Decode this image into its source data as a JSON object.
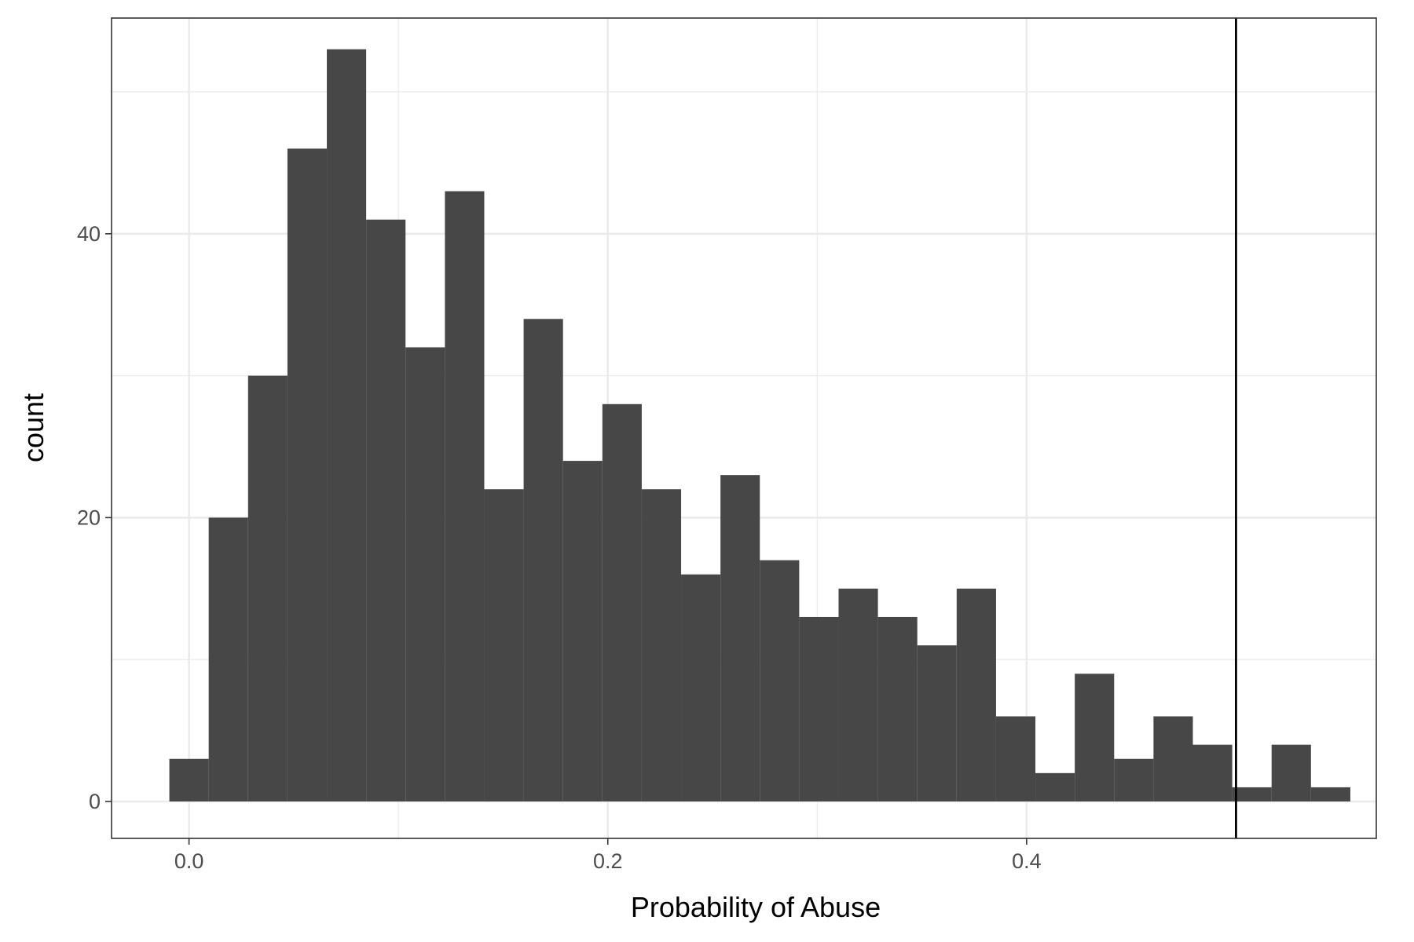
{
  "chart_data": {
    "type": "bar",
    "subtype": "histogram",
    "title": "",
    "xlabel": "Probability of Abuse",
    "ylabel": "count",
    "xlim": [
      -0.037,
      0.567
    ],
    "ylim": [
      -2.6,
      55.2
    ],
    "x_ticks": [
      {
        "value": 0.0,
        "label": "0.0"
      },
      {
        "value": 0.2,
        "label": "0.2"
      },
      {
        "value": 0.4,
        "label": "0.4"
      }
    ],
    "y_ticks": [
      {
        "value": 0,
        "label": "0"
      },
      {
        "value": 20,
        "label": "20"
      },
      {
        "value": 40,
        "label": "40"
      }
    ],
    "grid": true,
    "legend": "none",
    "bar_color": "#474747",
    "bins": [
      {
        "x_min": -0.0094,
        "x_max": 0.0094,
        "count": 3
      },
      {
        "x_min": 0.0094,
        "x_max": 0.0282,
        "count": 20
      },
      {
        "x_min": 0.0282,
        "x_max": 0.047,
        "count": 30
      },
      {
        "x_min": 0.047,
        "x_max": 0.0658,
        "count": 46
      },
      {
        "x_min": 0.0658,
        "x_max": 0.0846,
        "count": 53
      },
      {
        "x_min": 0.0846,
        "x_max": 0.1034,
        "count": 41
      },
      {
        "x_min": 0.1034,
        "x_max": 0.1222,
        "count": 32
      },
      {
        "x_min": 0.1222,
        "x_max": 0.141,
        "count": 43
      },
      {
        "x_min": 0.141,
        "x_max": 0.1598,
        "count": 22
      },
      {
        "x_min": 0.1598,
        "x_max": 0.1786,
        "count": 34
      },
      {
        "x_min": 0.1786,
        "x_max": 0.1974,
        "count": 24
      },
      {
        "x_min": 0.1974,
        "x_max": 0.2162,
        "count": 28
      },
      {
        "x_min": 0.2162,
        "x_max": 0.235,
        "count": 22
      },
      {
        "x_min": 0.235,
        "x_max": 0.2538,
        "count": 16
      },
      {
        "x_min": 0.2538,
        "x_max": 0.2726,
        "count": 23
      },
      {
        "x_min": 0.2726,
        "x_max": 0.2914,
        "count": 17
      },
      {
        "x_min": 0.2914,
        "x_max": 0.3102,
        "count": 13
      },
      {
        "x_min": 0.3102,
        "x_max": 0.329,
        "count": 15
      },
      {
        "x_min": 0.329,
        "x_max": 0.3478,
        "count": 13
      },
      {
        "x_min": 0.3478,
        "x_max": 0.3666,
        "count": 11
      },
      {
        "x_min": 0.3666,
        "x_max": 0.3854,
        "count": 15
      },
      {
        "x_min": 0.3854,
        "x_max": 0.4042,
        "count": 6
      },
      {
        "x_min": 0.4042,
        "x_max": 0.423,
        "count": 2
      },
      {
        "x_min": 0.423,
        "x_max": 0.4418,
        "count": 9
      },
      {
        "x_min": 0.4418,
        "x_max": 0.4606,
        "count": 3
      },
      {
        "x_min": 0.4606,
        "x_max": 0.4794,
        "count": 6
      },
      {
        "x_min": 0.4794,
        "x_max": 0.4982,
        "count": 4
      },
      {
        "x_min": 0.4982,
        "x_max": 0.517,
        "count": 1
      },
      {
        "x_min": 0.517,
        "x_max": 0.5358,
        "count": 4
      },
      {
        "x_min": 0.5358,
        "x_max": 0.5546,
        "count": 1
      }
    ],
    "vline": {
      "x": 0.5,
      "color": "#000000"
    }
  }
}
